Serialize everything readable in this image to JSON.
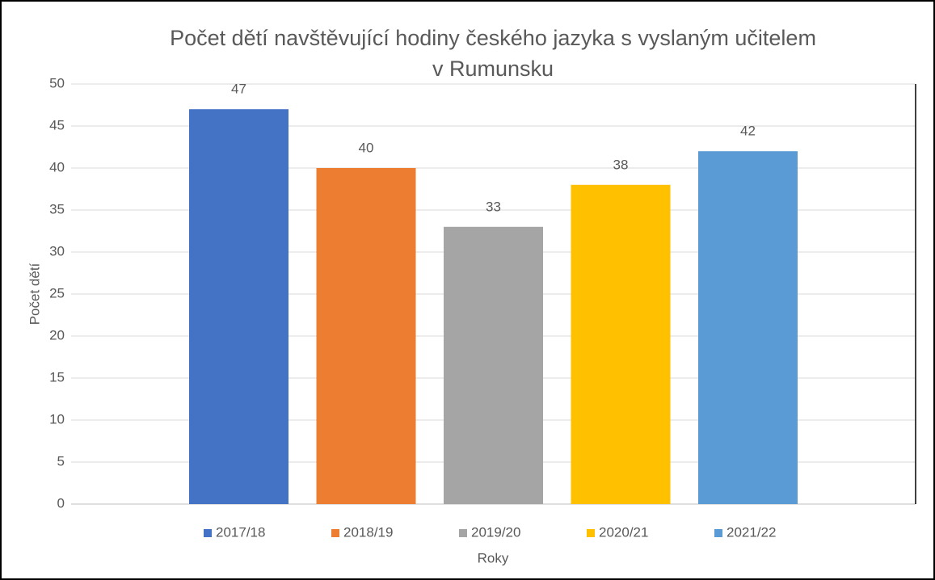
{
  "chart_data": {
    "type": "bar",
    "title": "Počet dětí navštěvující hodiny českého jazyka s vyslaným učitelem v Rumunsku",
    "x_label": "Roky",
    "y_label": "Počet dětí",
    "categories": [
      null
    ],
    "series": [
      {
        "name": "2017/18",
        "color": "#4472c4",
        "values": [
          47
        ]
      },
      {
        "name": "2018/19",
        "color": "#ed7d31",
        "values": [
          40
        ]
      },
      {
        "name": "2019/20",
        "color": "#a5a5a5",
        "values": [
          33
        ]
      },
      {
        "name": "2020/21",
        "color": "#ffc000",
        "values": [
          38
        ]
      },
      {
        "name": "2021/22",
        "color": "#5b9bd5",
        "values": [
          42
        ]
      }
    ],
    "ylim": [
      0,
      50
    ],
    "yticks": [
      0,
      5,
      10,
      15,
      20,
      25,
      30,
      35,
      40,
      45,
      50
    ],
    "grid": true,
    "legend": "bottom"
  }
}
